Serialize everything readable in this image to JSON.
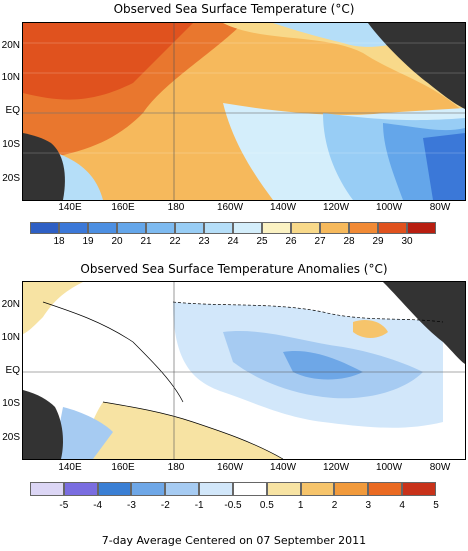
{
  "sst": {
    "title": "Observed Sea Surface Temperature (°C)",
    "lat_labels": [
      "20N",
      "10N",
      "EQ",
      "10S",
      "20S"
    ],
    "lon_labels": [
      "140E",
      "160E",
      "180",
      "160W",
      "140W",
      "120W",
      "100W",
      "80W"
    ],
    "colorbar_labels": [
      "18",
      "19",
      "20",
      "21",
      "22",
      "23",
      "24",
      "25",
      "26",
      "27",
      "28",
      "29",
      "30"
    ],
    "colorbar_colors": [
      "#2e5fc4",
      "#3b78d8",
      "#4c8fe2",
      "#64a6ea",
      "#7dbaf0",
      "#98cdf5",
      "#b5def8",
      "#d4eefb",
      "#fbf2c3",
      "#f8d98a",
      "#f6b95c",
      "#f18a35",
      "#e0521e",
      "#b81e10"
    ]
  },
  "anom": {
    "title": "Observed Sea Surface Temperature Anomalies (°C)",
    "lat_labels": [
      "20N",
      "10N",
      "EQ",
      "10S",
      "20S"
    ],
    "lon_labels": [
      "140E",
      "160E",
      "180",
      "160W",
      "140W",
      "120W",
      "100W",
      "80W"
    ],
    "colorbar_labels": [
      "-5",
      "-4",
      "-3",
      "-2",
      "-1",
      "-0.5",
      "0.5",
      "1",
      "2",
      "3",
      "4",
      "5"
    ],
    "colorbar_colors": [
      "#dcd6f5",
      "#7a6de0",
      "#3a7fd4",
      "#6ea7e7",
      "#a6cbf2",
      "#d2e7fa",
      "#ffffff",
      "#f7e3a3",
      "#f6c46b",
      "#f19a3c",
      "#ea6a22",
      "#c8321a"
    ]
  },
  "footer": "7-day Average Centered on 07 September 2011"
}
